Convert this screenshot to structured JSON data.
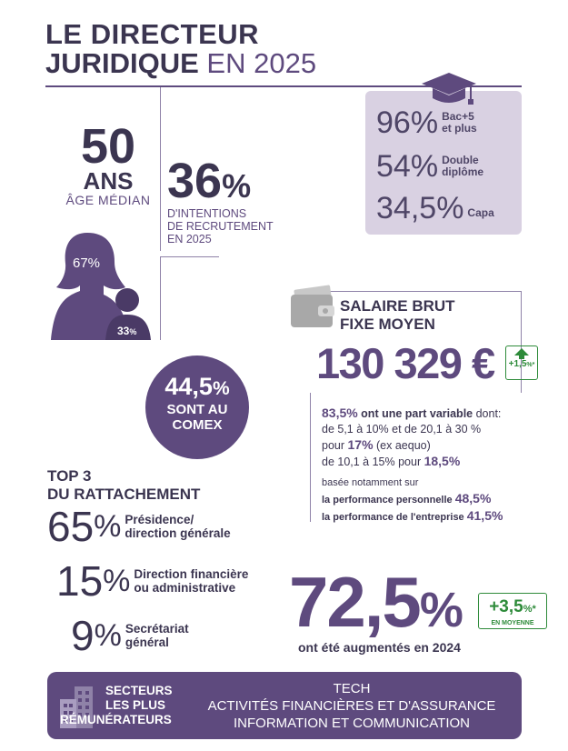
{
  "header": {
    "title_line1": "LE DIRECTEUR",
    "title_line2_bold": "JURIDIQUE",
    "title_line2_rest": " EN 2025"
  },
  "education": {
    "items": [
      {
        "value": "96",
        "unit": "%",
        "label1": "Bac+5",
        "label2": "et plus"
      },
      {
        "value": "54",
        "unit": "%",
        "label1": "Double",
        "label2": "diplôme"
      },
      {
        "value": "34,5",
        "unit": "%",
        "label1": "Capa",
        "label2": ""
      }
    ],
    "icon": "graduation-cap-icon"
  },
  "age": {
    "value": "50",
    "unit": "ANS",
    "label": "ÂGE MÉDIAN"
  },
  "recruitment": {
    "value": "36",
    "unit": "%",
    "label_line1": "D'INTENTIONS",
    "label_line2": "DE RECRUTEMENT",
    "label_line3": "EN 2025"
  },
  "gender": {
    "women": "67%",
    "men_value": "33",
    "men_unit": "%"
  },
  "salary": {
    "title_line1": "SALAIRE BRUT",
    "title_line2": "FIXE MOYEN",
    "amount": "130 329 €",
    "change": "+1,5",
    "change_unit": "%*",
    "variable_pct": "83,5%",
    "variable_text": " ont une part variable",
    "variable_tail": " dont:",
    "range_line": "de 5,1 à 10% et de 20,1 à 30 %",
    "pour1": "pour ",
    "pct17": "17%",
    "exaequo": " (ex aequo)",
    "range_line2": "de 10,1 à 15% pour ",
    "pct185": "18,5%",
    "based": "basée notamment sur",
    "perf1_label": "la performance personnelle ",
    "perf1_value": "48,5%",
    "perf2_label": "la performance de l'entreprise ",
    "perf2_value": "41,5%",
    "icon": "wallet-icon"
  },
  "comex": {
    "value": "44,5",
    "unit": "%",
    "line1": "SONT AU",
    "line2": "COMEX"
  },
  "reporting": {
    "title_line1": "TOP 3",
    "title_line2": "DU RATTACHEMENT",
    "items": [
      {
        "value": "65",
        "unit": "%",
        "label1": "Présidence/",
        "label2": "direction générale"
      },
      {
        "value": "15",
        "unit": "%",
        "label1": "Direction financière",
        "label2": "ou administrative"
      },
      {
        "value": "9",
        "unit": "%",
        "label1": "Secrétariat",
        "label2": "général"
      }
    ]
  },
  "raise": {
    "value": "72,5",
    "unit": "%",
    "label": "ont été augmentés en 2024",
    "change": "+3,5",
    "change_unit": "%*",
    "change_label": "EN MOYENNE"
  },
  "sectors": {
    "title_line1": "SECTEURS",
    "title_line2": "LES PLUS",
    "title_line3": "RÉMUNÉRATEURS",
    "items": [
      "TECH",
      "ACTIVITÉS FINANCIÈRES ET D'ASSURANCE",
      "INFORMATION ET COMMUNICATION"
    ],
    "icon": "buildings-icon"
  },
  "colors": {
    "primary": "#5e4a7e",
    "dark": "#3b3550",
    "lavender": "#d9d1e2",
    "green": "#2e8b3a"
  }
}
